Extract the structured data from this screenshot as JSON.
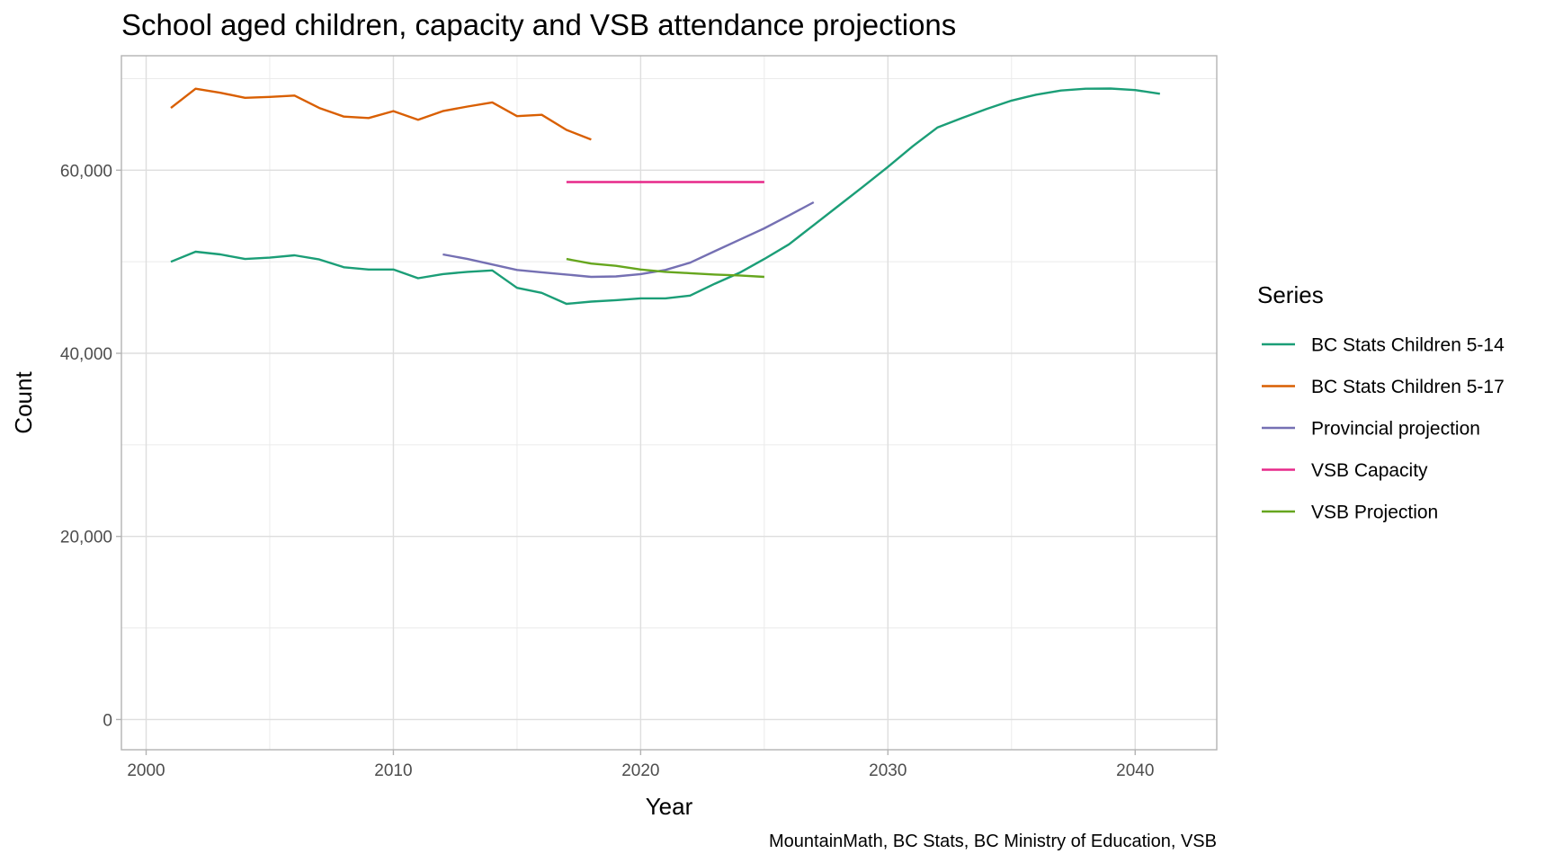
{
  "chart_data": {
    "type": "line",
    "title": "School aged children, capacity and VSB attendance projections",
    "xlabel": "Year",
    "ylabel": "Count",
    "caption": "MountainMath, BC Stats, BC Ministry of Education, VSB",
    "xlim": [
      1999,
      2043.3
    ],
    "ylim": [
      -3300,
      72500
    ],
    "x_ticks": [
      2000,
      2010,
      2020,
      2030,
      2040
    ],
    "x_tick_labels": [
      "2000",
      "2010",
      "2020",
      "2030",
      "2040"
    ],
    "x_minor": [
      2005,
      2015,
      2025,
      2035
    ],
    "y_ticks": [
      0,
      20000,
      40000,
      60000
    ],
    "y_tick_labels": [
      "0",
      "20,000",
      "40,000",
      "60,000"
    ],
    "y_minor": [
      10000,
      30000,
      50000,
      70000
    ],
    "grid": true,
    "legend": {
      "title": "Series",
      "position": "right"
    },
    "series": [
      {
        "name": "BC Stats Children 5-14",
        "color": "#1B9E77",
        "x": [
          2001,
          2002,
          2003,
          2004,
          2005,
          2006,
          2007,
          2008,
          2009,
          2010,
          2011,
          2012,
          2013,
          2014,
          2015,
          2016,
          2017,
          2018,
          2019,
          2020,
          2021,
          2022,
          2023,
          2024,
          2025,
          2026,
          2027,
          2028,
          2029,
          2030,
          2031,
          2032,
          2033,
          2034,
          2035,
          2036,
          2037,
          2038,
          2039,
          2040,
          2041
        ],
        "values": [
          50000,
          51100,
          50800,
          50300,
          50450,
          50700,
          50250,
          49400,
          49150,
          49150,
          48200,
          48650,
          48900,
          49050,
          47150,
          46600,
          45400,
          45650,
          45800,
          46000,
          46000,
          46300,
          47600,
          48800,
          50300,
          51900,
          54000,
          56100,
          58200,
          60350,
          62600,
          64650,
          65700,
          66700,
          67600,
          68250,
          68700,
          68900,
          68920,
          68750,
          68350
        ]
      },
      {
        "name": "BC Stats Children 5-17",
        "color": "#D95F02",
        "x": [
          2001,
          2002,
          2003,
          2004,
          2005,
          2006,
          2007,
          2008,
          2009,
          2010,
          2011,
          2012,
          2013,
          2014,
          2015,
          2016,
          2017,
          2018
        ],
        "values": [
          66800,
          68900,
          68450,
          67900,
          68000,
          68150,
          66800,
          65850,
          65700,
          66450,
          65500,
          66450,
          66950,
          67400,
          65900,
          66050,
          64400,
          63350
        ]
      },
      {
        "name": "Provincial projection",
        "color": "#7570B3",
        "x": [
          2012,
          2013,
          2014,
          2015,
          2016,
          2017,
          2018,
          2019,
          2020,
          2021,
          2022,
          2023,
          2024,
          2025,
          2026,
          2027
        ],
        "values": [
          50800,
          50300,
          49700,
          49100,
          48850,
          48600,
          48350,
          48400,
          48650,
          49100,
          49900,
          51150,
          52400,
          53650,
          55050,
          56500
        ]
      },
      {
        "name": "VSB Capacity",
        "color": "#E7298A",
        "x": [
          2017,
          2018,
          2019,
          2020,
          2021,
          2022,
          2023,
          2024,
          2025
        ],
        "values": [
          58700,
          58700,
          58700,
          58700,
          58700,
          58700,
          58700,
          58700,
          58700
        ]
      },
      {
        "name": "VSB Projection",
        "color": "#66A61E",
        "x": [
          2017,
          2018,
          2019,
          2020,
          2021,
          2022,
          2023,
          2024,
          2025
        ],
        "values": [
          50300,
          49800,
          49550,
          49150,
          48900,
          48750,
          48600,
          48500,
          48350
        ]
      }
    ]
  }
}
